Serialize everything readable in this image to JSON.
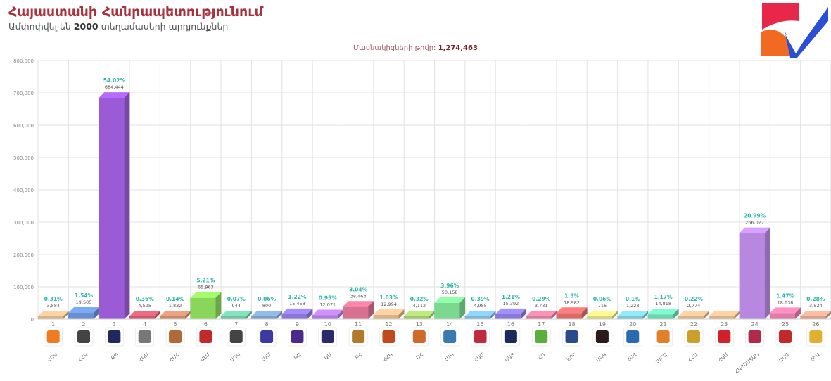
{
  "header": {
    "title": "Հայաստանի Հանրապետությունում",
    "subtitle_prefix": "Ամփոփվել են ",
    "subtitle_count": "2000",
    "subtitle_suffix": " տեղամասերի արդյունքներ",
    "voters_label": "Մասնակիցների թիվը:",
    "voters_value": "1,274,463"
  },
  "colors": {
    "title": "#a8323e",
    "grid": "#e2e2e2",
    "percent_label": "#2bb5a8",
    "logo_red": "#e8284a",
    "logo_orange": "#f26a21",
    "logo_blue": "#2a4fd6"
  },
  "chart_data": {
    "type": "bar",
    "ylim": [
      0,
      800000
    ],
    "yticks": [
      "0",
      "100,000",
      "200,000",
      "300,000",
      "400,000",
      "500,000",
      "600,000",
      "700,000",
      "800,000"
    ],
    "categories": [
      "1",
      "2",
      "3",
      "4",
      "5",
      "6",
      "7",
      "8",
      "9",
      "10",
      "11",
      "12",
      "13",
      "14",
      "15",
      "16",
      "17",
      "18",
      "19",
      "20",
      "21",
      "22",
      "23",
      "24",
      "25",
      "26"
    ],
    "party_names": [
      "ՀԱԿ",
      "ՀՀԿ",
      "ՔՊ",
      "ՀԿՄ",
      "ՀՄՀ",
      "ԱԼՄ",
      "ԱԴԿ",
      "ՀԱՄ",
      "ԿԱ",
      "ԱՄ",
      "ԲՀ",
      "ՀՀԿ",
      "ԱՀ",
      "ՀԱԿ",
      "ՀԱՄ",
      "ՍԱՅ",
      "ՀԴ",
      "ԵՈՒ",
      "ԱԿԿ",
      "ՀԱՀ",
      "ՀԱՐԱ",
      "ՀՀԱ",
      "ՀԱՄ",
      "ՀԱՅԱՍՏԱՆ",
      "ԱԱԶ",
      "ՀԵԱ"
    ],
    "values": [
      3884,
      19505,
      684444,
      4595,
      1832,
      65963,
      944,
      800,
      15458,
      12071,
      38463,
      12994,
      4112,
      50158,
      4985,
      15392,
      3731,
      18982,
      716,
      1228,
      14818,
      2774,
      null,
      266027,
      18638,
      3524
    ],
    "value_labels": [
      "3,884",
      "19,505",
      "684,444",
      "4,595",
      "1,832",
      "65,963",
      "944",
      "800",
      "15,458",
      "12,071",
      "38,463",
      "12,994",
      "4,112",
      "50,158",
      "4,985",
      "15,392",
      "3,731",
      "18,982",
      "716",
      "1,228",
      "14,818",
      "2,774",
      "",
      "266,027",
      "18,638",
      "3,524"
    ],
    "percent_labels": [
      "0.31%",
      "1.54%",
      "54.02%",
      "0.36%",
      "0.14%",
      "5.21%",
      "0.07%",
      "0.06%",
      "1.22%",
      "0.95%",
      "3.04%",
      "1.03%",
      "0.32%",
      "3.96%",
      "0.39%",
      "1.21%",
      "0.29%",
      "1.5%",
      "0.06%",
      "0.1%",
      "1.17%",
      "0.22%",
      "",
      "20.99%",
      "1.47%",
      "0.28%"
    ],
    "bar_colors": [
      "#d8b389",
      "#6a8fd0",
      "#9b5bd6",
      "#c95a6e",
      "#c98a6a",
      "#8ad65a",
      "#6fc2a2",
      "#7aa0c8",
      "#8b78d6",
      "#b07ad8",
      "#d8708f",
      "#d8b389",
      "#9fc86a",
      "#7ad88f",
      "#7ab6d6",
      "#8a7ad8",
      "#d87a9b",
      "#d86a6a",
      "#d8d47a",
      "#7ac8d6",
      "#6ad6b0",
      "#d8b389",
      "#d8b389",
      "#b888e0",
      "#e07aa6",
      "#d8a089"
    ],
    "icons": [
      "party-1-icon",
      "party-2-icon",
      "party-3-icon",
      "party-4-icon",
      "party-5-icon",
      "party-6-icon",
      "party-7-icon",
      "party-8-icon",
      "party-9-icon",
      "party-10-icon",
      "party-11-icon",
      "party-12-icon",
      "party-13-icon",
      "party-14-icon",
      "party-15-icon",
      "party-16-icon",
      "party-17-icon",
      "party-18-icon",
      "party-19-icon",
      "party-20-icon",
      "party-21-icon",
      "party-22-icon",
      "party-23-icon",
      "party-24-icon",
      "party-25-icon",
      "party-26-icon"
    ],
    "icon_colors": [
      "#f07a1e",
      "#444444",
      "#1f2a5a",
      "#777777",
      "#b06a3a",
      "#c02a2a",
      "#444444",
      "#3a3aa0",
      "#4a2a8a",
      "#2a2a6a",
      "#b07a2a",
      "#c04a1a",
      "#d06a2a",
      "#3a7ab0",
      "#c02a3a",
      "#1a2a5a",
      "#5ab03a",
      "#2a4a8a",
      "#2a1a1a",
      "#2a6ab0",
      "#e0802a",
      "#c8a02a",
      "#d0202a",
      "#b02a4a",
      "#c02a2a",
      "#e0b030"
    ]
  }
}
